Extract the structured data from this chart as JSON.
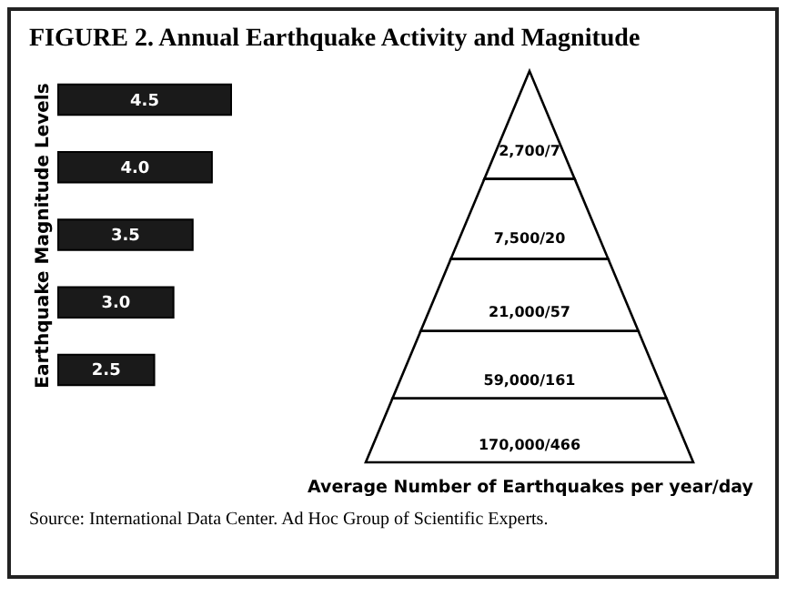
{
  "chart_data": [
    {
      "type": "bar",
      "orientation": "horizontal",
      "title": "FIGURE 2. Annual Earthquake Activity and Magnitude",
      "ylabel": "Earthquake Magnitude Levels",
      "categories": [
        null,
        null,
        null,
        null,
        null
      ],
      "values": [
        4.5,
        4.0,
        3.5,
        3.0,
        2.5
      ],
      "value_labels": [
        "4.5",
        "4.0",
        "3.5",
        "3.0",
        "2.5"
      ],
      "color": "#1a1a1a"
    },
    {
      "type": "other",
      "xlabel": "Average Number of Earthquakes per year/day",
      "categories": [
        null,
        null,
        null,
        null,
        null
      ],
      "values": [
        2700,
        7500,
        21000,
        59000,
        170000
      ],
      "value_labels": [
        "2,700/7",
        "7,500/20",
        "21,000/57",
        "59,000/161",
        "170,000/466"
      ],
      "color": "#ffffff",
      "annotations": [
        "Source: International Data Center. Ad Hoc Group of Scientific Experts."
      ]
    }
  ]
}
